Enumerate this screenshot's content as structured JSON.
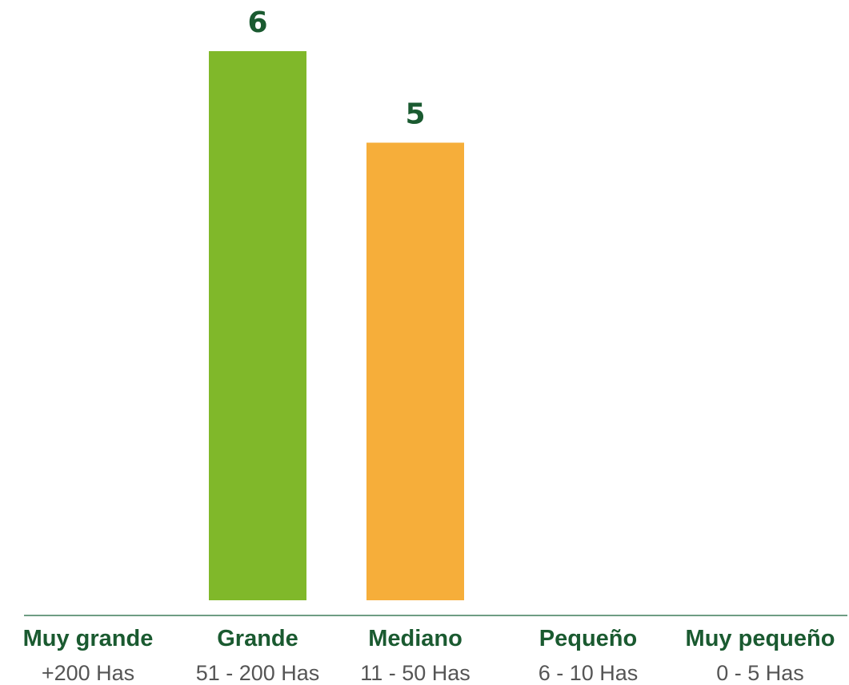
{
  "chart_data": {
    "type": "bar",
    "categories": [
      "Muy grande",
      "Grande",
      "Mediano",
      "Pequeño",
      "Muy pequeño"
    ],
    "category_subtitles": [
      "+200 Has",
      "51 - 200 Has",
      "11 - 50 Has",
      "6 - 10 Has",
      "0 - 5 Has"
    ],
    "values": [
      0,
      6,
      5,
      0,
      0
    ],
    "data_labels": [
      "",
      "6",
      "5",
      "",
      ""
    ],
    "bar_colors": [
      "#80b82a",
      "#80b82a",
      "#f6ae3a",
      "#80b82a",
      "#80b82a"
    ],
    "title": "",
    "xlabel": "",
    "ylabel": "",
    "ylim": [
      0,
      6
    ],
    "grid": false,
    "legend": "none"
  },
  "colors": {
    "label_green": "#1a5a30",
    "subtitle_gray": "#555555",
    "axis_line": "#3f7d5a"
  }
}
